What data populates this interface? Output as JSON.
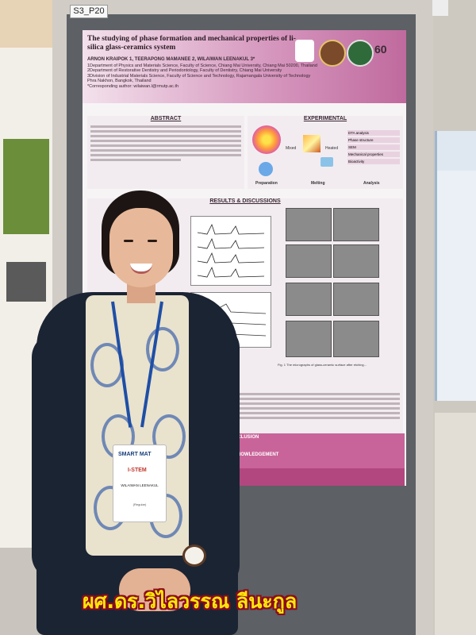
{
  "board": {
    "id_label": "S3_P20"
  },
  "poster": {
    "title": "The studying of phase formation and mechanical properties of li-silica glass-ceramics system",
    "authors": "ARNON KRAIPOK 1, TEERAPONG MAMANEE 2, WILAIWAN LEENAKUL 3*",
    "affiliations": [
      "1Department of Physics and Materials Science, Faculty of Science, Chiang Mai University, Chiang Mai 50200, Thailand",
      "2Department of Restorative Dentistry and Periodontology, Faculty of Dentistry, Chiang Mai University",
      "3Division of Industrial Materials Science, Faculty of Science and Technology, Rajamangala University of Technology Phra Nakhon, Bangkok, Thailand",
      "*Corresponding author: wilaiwan.l@rmutp.ac.th"
    ],
    "sections": {
      "abstract": "ABSTRACT",
      "experimental": "EXPERIMENTAL",
      "results": "RESULTS & DISCUSSIONS",
      "conclusion": "CONCLUSION",
      "acknowledgement": "ACKNOWLEDGEMENT"
    },
    "exp_labels": {
      "mixed": "Mixed",
      "heated": "Heated",
      "preparation": "Preparation",
      "melting": "Melting",
      "analysis": "Analysis",
      "analyses": [
        "DTA analysis",
        "Phase structure",
        "SEM",
        "Mechanical properties",
        "Bioactivity"
      ]
    },
    "figure_caption": "Fig. 1 The micrographs of glass-ceramic surface after etching..."
  },
  "badge": {
    "event": "SMART MAT",
    "sub": "I-STEM",
    "name": "WILAIWAN LEENAKUL",
    "role": "(Regular)"
  },
  "caption": "ผศ.ดร.วิไลวรรณ ลีนะกูล",
  "colors": {
    "caption_fill": "#ffe60a",
    "caption_outline": "#8a0c1f",
    "poster_accent": "#c06a9e",
    "board": "#5d6064"
  }
}
